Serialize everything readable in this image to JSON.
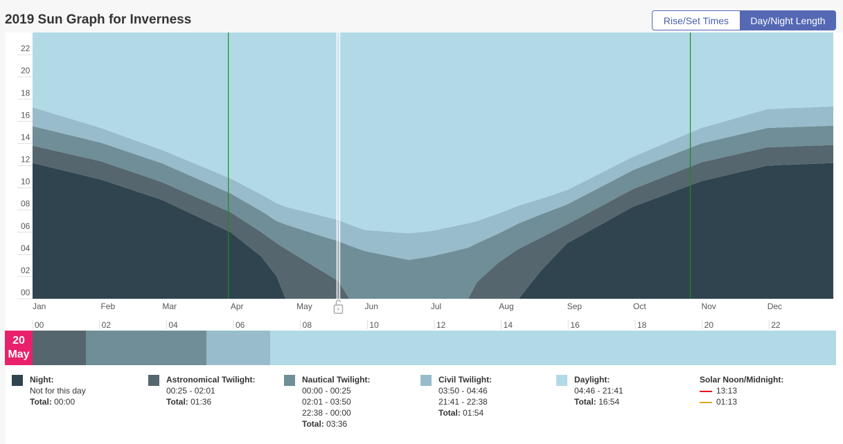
{
  "title": "2019 Sun Graph for Inverness",
  "toggle": {
    "rise_set": "Rise/Set Times",
    "day_night": "Day/Night Length",
    "active": "Day/Night Length"
  },
  "colors": {
    "night": "#2f444e",
    "astronomical": "#56666e",
    "nautical": "#6f8e97",
    "civil": "#98bccb",
    "daylight": "#b1dae6",
    "dst": "#1e8a1e",
    "selected_date": "#e8216a",
    "solar_noon": "#e8141e",
    "solar_midnight": "#e0a81c"
  },
  "chart_data": {
    "type": "area",
    "stacked": true,
    "title": "",
    "ylabel": "",
    "ylim": [
      0,
      24
    ],
    "yticks": [
      "00",
      "02",
      "04",
      "06",
      "08",
      "10",
      "12",
      "14",
      "16",
      "18",
      "20",
      "22"
    ],
    "months": [
      "Jan",
      "Feb",
      "Mar",
      "Apr",
      "May",
      "Jun",
      "Jul",
      "Aug",
      "Sep",
      "Oct",
      "Nov",
      "Dec"
    ],
    "x": [
      "2019-01-01",
      "2019-02-01",
      "2019-03-01",
      "2019-04-01",
      "2019-04-15",
      "2019-04-22",
      "2019-04-26",
      "2019-05-10",
      "2019-05-20",
      "2019-05-25",
      "2019-06-01",
      "2019-06-21",
      "2019-07-01",
      "2019-07-18",
      "2019-07-22",
      "2019-08-01",
      "2019-08-10",
      "2019-08-20",
      "2019-09-01",
      "2019-10-01",
      "2019-11-01",
      "2019-12-01",
      "2019-12-31"
    ],
    "series": [
      {
        "name": "Night",
        "key": "night",
        "values": [
          12.24,
          10.75,
          8.9,
          6.0,
          3.8,
          2.0,
          0,
          0,
          0,
          0,
          0,
          0,
          0,
          0,
          0,
          0,
          0,
          2.5,
          5.0,
          8.3,
          10.6,
          12.0,
          12.24
        ]
      },
      {
        "name": "Astronomical Twilight",
        "key": "astronomical",
        "values": [
          1.56,
          1.65,
          1.6,
          1.8,
          2.2,
          3.0,
          4.5,
          2.8,
          1.6,
          0,
          0,
          0,
          0,
          0,
          1.5,
          3.3,
          4.5,
          3.0,
          1.7,
          1.6,
          1.7,
          1.65,
          1.62
        ]
      },
      {
        "name": "Nautical Twilight",
        "key": "nautical",
        "values": [
          1.76,
          1.67,
          1.7,
          1.7,
          1.9,
          2.0,
          2.2,
          3.0,
          3.6,
          4.8,
          4.3,
          3.5,
          3.8,
          4.6,
          3.5,
          2.6,
          2.3,
          2.1,
          1.8,
          1.7,
          1.7,
          1.75,
          1.74
        ]
      },
      {
        "name": "Civil Twilight",
        "key": "civil",
        "values": [
          1.7,
          1.33,
          1.2,
          1.35,
          1.5,
          1.6,
          1.6,
          1.8,
          1.9,
          1.9,
          1.9,
          2.4,
          2.3,
          2.2,
          2.0,
          1.8,
          1.6,
          1.4,
          1.3,
          1.2,
          1.4,
          1.7,
          1.74
        ]
      },
      {
        "name": "Daylight",
        "key": "daylight",
        "values": [
          6.74,
          8.6,
          10.6,
          13.15,
          14.6,
          15.4,
          15.7,
          16.4,
          16.9,
          17.3,
          17.8,
          18.1,
          17.9,
          17.2,
          17.0,
          16.3,
          15.6,
          15.0,
          14.2,
          11.2,
          8.6,
          6.9,
          6.66
        ]
      }
    ],
    "dst_changes": [
      "2019-03-31",
      "2019-10-27"
    ],
    "selected_date": "2019-05-20",
    "grid": false,
    "legend": "bottom"
  },
  "day_bar": {
    "day": "20",
    "month": "May",
    "hour_ticks": [
      "00",
      "02",
      "04",
      "06",
      "08",
      "10",
      "12",
      "14",
      "16",
      "18",
      "20",
      "22"
    ],
    "segments": [
      {
        "key": "astronomical",
        "hours": 1.6
      },
      {
        "key": "nautical",
        "hours": 3.6
      },
      {
        "key": "civil",
        "hours": 1.9
      },
      {
        "key": "daylight",
        "hours": 16.9
      }
    ]
  },
  "legend": {
    "night": {
      "label": "Night:",
      "lines": [
        "Not for this day"
      ],
      "total_label": "Total:",
      "total": "00:00"
    },
    "astronomical": {
      "label": "Astronomical Twilight:",
      "lines": [
        "00:25 - 02:01"
      ],
      "total_label": "Total:",
      "total": "01:36"
    },
    "nautical": {
      "label": "Nautical Twilight:",
      "lines": [
        "00:00 - 00:25",
        "02:01 - 03:50",
        "22:38 - 00:00"
      ],
      "total_label": "Total:",
      "total": "03:36"
    },
    "civil": {
      "label": "Civil Twilight:",
      "lines": [
        "03:50 - 04:46",
        "21:41 - 22:38"
      ],
      "total_label": "Total:",
      "total": "01:54"
    },
    "daylight": {
      "label": "Daylight:",
      "lines": [
        "04:46 - 21:41"
      ],
      "total_label": "Total:",
      "total": "16:54"
    },
    "solar": {
      "label": "Solar Noon/Midnight:",
      "noon": "13:13",
      "midnight": "01:13"
    }
  }
}
